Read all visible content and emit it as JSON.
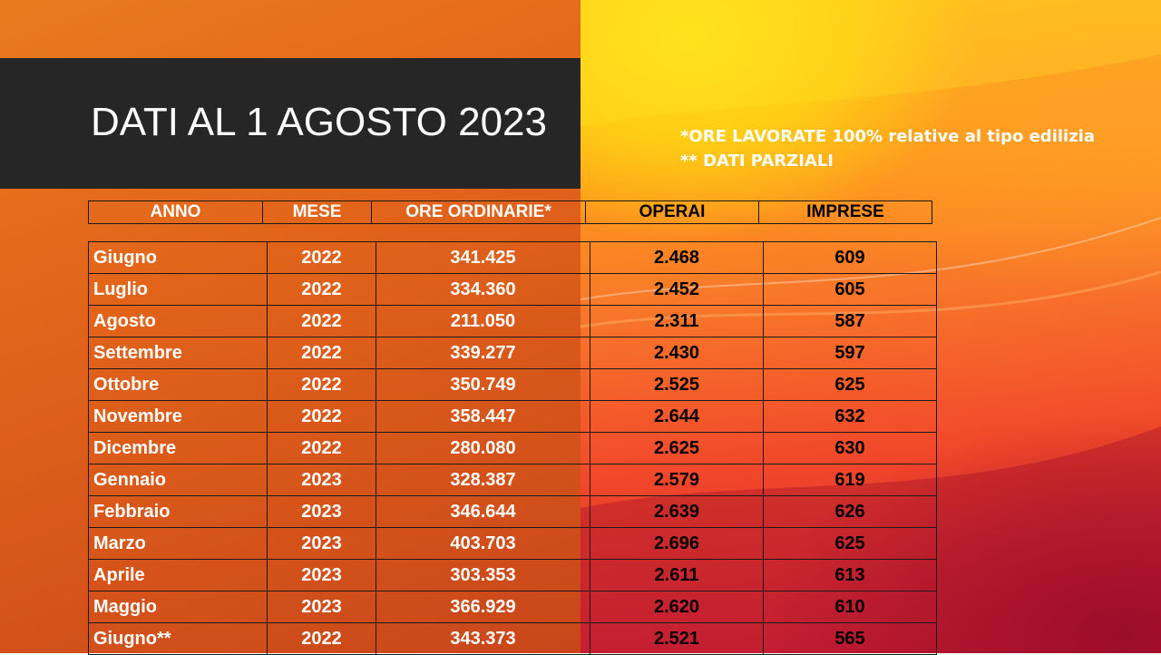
{
  "slide": {
    "title": "DATI AL 1 AGOSTO 2023",
    "notes": [
      "*ORE LAVORATE 100% relative al tipo edilizia",
      "** DATI PARZIALI"
    ]
  },
  "table": {
    "headers": [
      "ANNO",
      "MESE",
      "ORE ORDINARIE*",
      "OPERAI",
      "IMPRESE"
    ],
    "rows": [
      [
        "Giugno",
        "2022",
        "341.425",
        "2.468",
        "609"
      ],
      [
        "Luglio",
        "2022",
        "334.360",
        "2.452",
        "605"
      ],
      [
        "Agosto",
        "2022",
        "211.050",
        "2.311",
        "587"
      ],
      [
        "Settembre",
        "2022",
        "339.277",
        "2.430",
        "597"
      ],
      [
        "Ottobre",
        "2022",
        "350.749",
        "2.525",
        "625"
      ],
      [
        "Novembre",
        "2022",
        "358.447",
        "2.644",
        "632"
      ],
      [
        "Dicembre",
        "2022",
        "280.080",
        "2.625",
        "630"
      ],
      [
        "Gennaio",
        "2023",
        "328.387",
        "2.579",
        "619"
      ],
      [
        "Febbraio",
        "2023",
        "346.644",
        "2.639",
        "626"
      ],
      [
        "Marzo",
        "2023",
        "403.703",
        "2.696",
        "625"
      ],
      [
        "Aprile",
        "2023",
        "303.353",
        "2.611",
        "613"
      ],
      [
        "Maggio",
        "2023",
        "366.929",
        "2.620",
        "610"
      ],
      [
        "Giugno**",
        "2022",
        "343.373",
        "2.521",
        "565"
      ]
    ]
  },
  "colors": {
    "left_bg": "#e2641a",
    "title_bar": "#262626",
    "header_text": "#ffffff",
    "light_text": "#ffffff",
    "dark_text": "#000000"
  }
}
